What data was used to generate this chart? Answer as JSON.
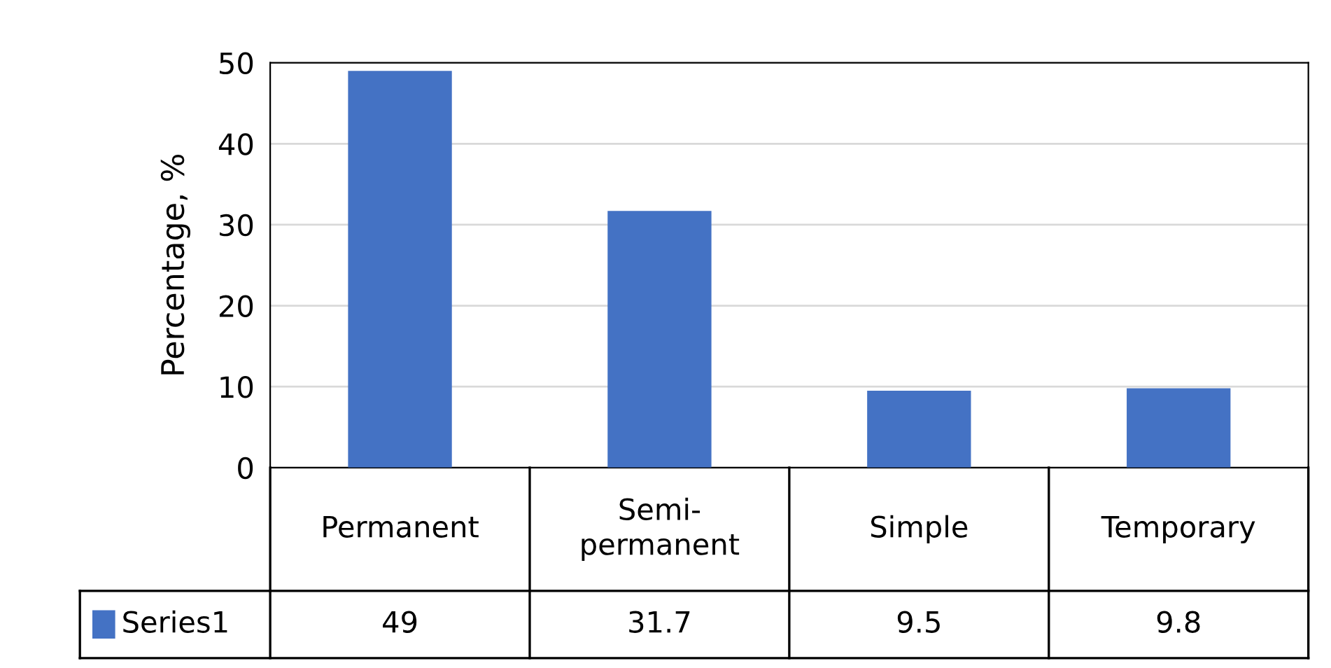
{
  "chart_data": {
    "type": "bar",
    "ylabel": "Percentage, %",
    "categories": [
      "Permanent",
      "Semi-\npermanent",
      "Simple",
      "Temporary"
    ],
    "series": [
      {
        "name": "Series1",
        "color": "#4472c4",
        "values": [
          49,
          31.7,
          9.5,
          9.8
        ]
      }
    ],
    "ylim": [
      0,
      50
    ],
    "yticks": [
      0,
      10,
      20,
      30,
      40,
      50
    ],
    "grid": "y",
    "data_labels": true
  }
}
